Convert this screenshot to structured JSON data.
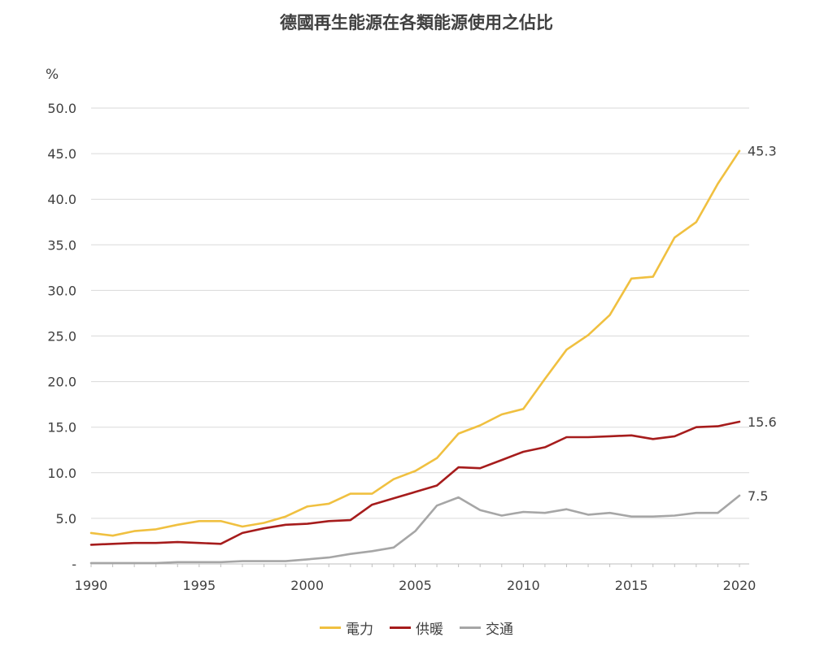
{
  "chart_data": {
    "type": "line",
    "title": "德國再生能源在各類能源使用之佔比",
    "ylabel": "%",
    "xlabel": "",
    "ylim": [
      0,
      50
    ],
    "xlim": [
      1990,
      2020
    ],
    "y_ticks": [
      "-",
      "5.0",
      "10.0",
      "15.0",
      "20.0",
      "25.0",
      "30.0",
      "35.0",
      "40.0",
      "45.0",
      "50.0"
    ],
    "x_ticks": [
      "1990",
      "1995",
      "2000",
      "2005",
      "2010",
      "2015",
      "2020"
    ],
    "grid": true,
    "legend_position": "bottom",
    "x": [
      1990,
      1991,
      1992,
      1993,
      1994,
      1995,
      1996,
      1997,
      1998,
      1999,
      2000,
      2001,
      2002,
      2003,
      2004,
      2005,
      2006,
      2007,
      2008,
      2009,
      2010,
      2011,
      2012,
      2013,
      2014,
      2015,
      2016,
      2017,
      2018,
      2019,
      2020
    ],
    "series": [
      {
        "name": "電力",
        "color": "#f0c040",
        "end_label": "45.3",
        "values": [
          3.4,
          3.1,
          3.6,
          3.8,
          4.3,
          4.7,
          4.7,
          4.1,
          4.5,
          5.2,
          6.3,
          6.6,
          7.7,
          7.7,
          9.3,
          10.2,
          11.6,
          14.3,
          15.2,
          16.4,
          17.0,
          20.3,
          23.5,
          25.1,
          27.3,
          31.3,
          31.5,
          35.8,
          37.5,
          41.7,
          45.3
        ]
      },
      {
        "name": "供暖",
        "color": "#a61c1c",
        "end_label": "15.6",
        "values": [
          2.1,
          2.2,
          2.3,
          2.3,
          2.4,
          2.3,
          2.2,
          3.4,
          3.9,
          4.3,
          4.4,
          4.7,
          4.8,
          6.5,
          7.2,
          7.9,
          8.6,
          10.6,
          10.5,
          11.4,
          12.3,
          12.8,
          13.9,
          13.9,
          14.0,
          14.1,
          13.7,
          14.0,
          15.0,
          15.1,
          15.6
        ]
      },
      {
        "name": "交通",
        "color": "#a6a6a6",
        "end_label": "7.5",
        "values": [
          0.1,
          0.1,
          0.1,
          0.1,
          0.2,
          0.2,
          0.2,
          0.3,
          0.3,
          0.3,
          0.5,
          0.7,
          1.1,
          1.4,
          1.8,
          3.6,
          6.4,
          7.3,
          5.9,
          5.3,
          5.7,
          5.6,
          6.0,
          5.4,
          5.6,
          5.2,
          5.2,
          5.3,
          5.6,
          5.6,
          7.5
        ]
      }
    ]
  }
}
